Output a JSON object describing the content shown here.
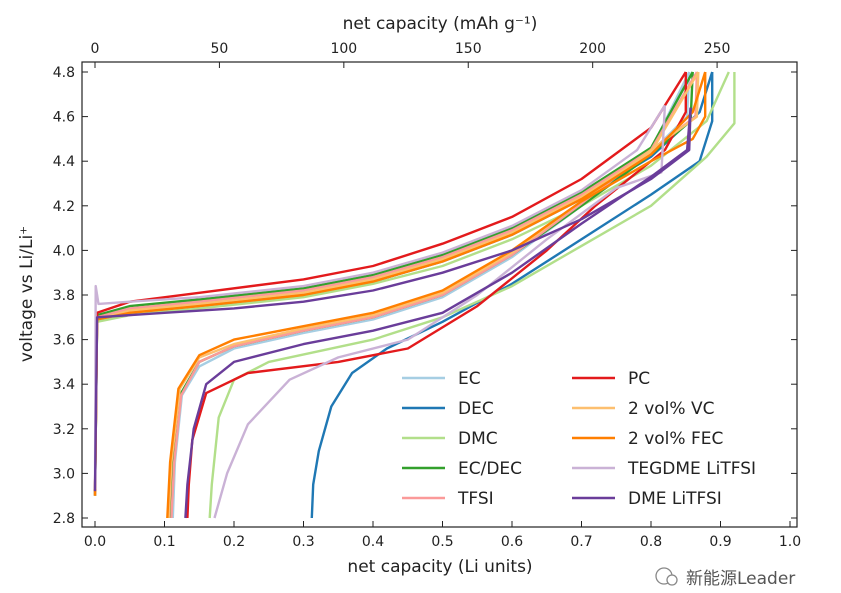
{
  "chart_data": {
    "type": "line",
    "xlabel": "net capacity (Li units)",
    "ylabel": "voltage vs Li/Li⁺",
    "x2label": "net capacity (mAh g⁻¹)",
    "xlim": [
      -0.02,
      1.02
    ],
    "ylim": [
      2.76,
      4.84
    ],
    "x2_per_x": 279.3,
    "xticks": [
      "0.0",
      "0.1",
      "0.2",
      "0.3",
      "0.4",
      "0.5",
      "0.6",
      "0.7",
      "0.8",
      "0.9",
      "1.0"
    ],
    "x2ticks": [
      "0",
      "50",
      "100",
      "150",
      "200",
      "250"
    ],
    "yticks": [
      "2.8",
      "3.0",
      "3.2",
      "3.4",
      "3.6",
      "3.8",
      "4.0",
      "4.2",
      "4.4",
      "4.6",
      "4.8"
    ],
    "grid": false,
    "legend_placement": "bottom-right",
    "series": [
      {
        "name": "EC",
        "color": "#a6cee3",
        "charge": [
          [
            0,
            2.9
          ],
          [
            0.003,
            3.7
          ],
          [
            0.05,
            3.74
          ],
          [
            0.15,
            3.77
          ],
          [
            0.3,
            3.82
          ],
          [
            0.4,
            3.88
          ],
          [
            0.5,
            3.97
          ],
          [
            0.6,
            4.09
          ],
          [
            0.7,
            4.25
          ],
          [
            0.8,
            4.45
          ],
          [
            0.855,
            4.8
          ]
        ],
        "discharge": [
          [
            0.855,
            4.8
          ],
          [
            0.852,
            4.6
          ],
          [
            0.8,
            4.44
          ],
          [
            0.7,
            4.2
          ],
          [
            0.6,
            3.97
          ],
          [
            0.5,
            3.79
          ],
          [
            0.4,
            3.69
          ],
          [
            0.3,
            3.63
          ],
          [
            0.2,
            3.56
          ],
          [
            0.15,
            3.48
          ],
          [
            0.125,
            3.35
          ],
          [
            0.115,
            3.05
          ],
          [
            0.112,
            2.8
          ]
        ]
      },
      {
        "name": "DEC",
        "color": "#1f78b4",
        "charge": [
          [
            0,
            2.9
          ],
          [
            0.003,
            3.69
          ],
          [
            0.05,
            3.72
          ],
          [
            0.15,
            3.75
          ],
          [
            0.3,
            3.8
          ],
          [
            0.4,
            3.86
          ],
          [
            0.5,
            3.95
          ],
          [
            0.6,
            4.07
          ],
          [
            0.7,
            4.23
          ],
          [
            0.8,
            4.42
          ],
          [
            0.87,
            4.62
          ],
          [
            0.888,
            4.8
          ]
        ],
        "discharge": [
          [
            0.888,
            4.8
          ],
          [
            0.888,
            4.58
          ],
          [
            0.87,
            4.4
          ],
          [
            0.8,
            4.25
          ],
          [
            0.7,
            4.05
          ],
          [
            0.6,
            3.85
          ],
          [
            0.5,
            3.68
          ],
          [
            0.42,
            3.56
          ],
          [
            0.37,
            3.45
          ],
          [
            0.34,
            3.3
          ],
          [
            0.322,
            3.1
          ],
          [
            0.314,
            2.95
          ],
          [
            0.312,
            2.8
          ]
        ]
      },
      {
        "name": "DMC",
        "color": "#b2df8a",
        "charge": [
          [
            0,
            2.9
          ],
          [
            0.003,
            3.68
          ],
          [
            0.05,
            3.71
          ],
          [
            0.15,
            3.74
          ],
          [
            0.3,
            3.79
          ],
          [
            0.4,
            3.85
          ],
          [
            0.5,
            3.93
          ],
          [
            0.6,
            4.05
          ],
          [
            0.7,
            4.2
          ],
          [
            0.8,
            4.38
          ],
          [
            0.88,
            4.58
          ],
          [
            0.912,
            4.8
          ]
        ],
        "discharge": [
          [
            0.92,
            4.8
          ],
          [
            0.92,
            4.57
          ],
          [
            0.88,
            4.42
          ],
          [
            0.8,
            4.2
          ],
          [
            0.7,
            4.02
          ],
          [
            0.6,
            3.84
          ],
          [
            0.5,
            3.7
          ],
          [
            0.4,
            3.6
          ],
          [
            0.25,
            3.5
          ],
          [
            0.2,
            3.42
          ],
          [
            0.178,
            3.25
          ],
          [
            0.168,
            2.95
          ],
          [
            0.165,
            2.8
          ]
        ]
      },
      {
        "name": "EC/DEC",
        "color": "#33a02c",
        "charge": [
          [
            0,
            2.9
          ],
          [
            0.003,
            3.71
          ],
          [
            0.05,
            3.75
          ],
          [
            0.15,
            3.78
          ],
          [
            0.3,
            3.83
          ],
          [
            0.4,
            3.89
          ],
          [
            0.5,
            3.98
          ],
          [
            0.6,
            4.1
          ],
          [
            0.7,
            4.26
          ],
          [
            0.8,
            4.46
          ],
          [
            0.86,
            4.8
          ]
        ],
        "discharge": [
          [
            0.86,
            4.8
          ],
          [
            0.857,
            4.58
          ],
          [
            0.8,
            4.43
          ],
          [
            0.7,
            4.2
          ],
          [
            0.6,
            3.98
          ],
          [
            0.5,
            3.8
          ],
          [
            0.4,
            3.7
          ],
          [
            0.3,
            3.64
          ],
          [
            0.2,
            3.57
          ],
          [
            0.15,
            3.5
          ],
          [
            0.122,
            3.35
          ],
          [
            0.112,
            3.05
          ],
          [
            0.108,
            2.8
          ]
        ]
      },
      {
        "name": "TFSI",
        "color": "#fb9a99",
        "charge": [
          [
            0,
            2.9
          ],
          [
            0.003,
            3.7
          ],
          [
            0.05,
            3.74
          ],
          [
            0.15,
            3.77
          ],
          [
            0.3,
            3.82
          ],
          [
            0.4,
            3.88
          ],
          [
            0.5,
            3.97
          ],
          [
            0.6,
            4.09
          ],
          [
            0.7,
            4.25
          ],
          [
            0.8,
            4.45
          ],
          [
            0.866,
            4.8
          ]
        ],
        "discharge": [
          [
            0.866,
            4.8
          ],
          [
            0.864,
            4.6
          ],
          [
            0.8,
            4.45
          ],
          [
            0.7,
            4.21
          ],
          [
            0.6,
            3.98
          ],
          [
            0.5,
            3.8
          ],
          [
            0.4,
            3.7
          ],
          [
            0.3,
            3.64
          ],
          [
            0.2,
            3.57
          ],
          [
            0.15,
            3.5
          ],
          [
            0.124,
            3.35
          ],
          [
            0.114,
            3.05
          ],
          [
            0.11,
            2.8
          ]
        ]
      },
      {
        "name": "PC",
        "color": "#e31a1c",
        "charge": [
          [
            0,
            2.92
          ],
          [
            0.003,
            3.72
          ],
          [
            0.05,
            3.77
          ],
          [
            0.15,
            3.81
          ],
          [
            0.3,
            3.87
          ],
          [
            0.4,
            3.93
          ],
          [
            0.5,
            4.03
          ],
          [
            0.6,
            4.15
          ],
          [
            0.7,
            4.32
          ],
          [
            0.8,
            4.55
          ],
          [
            0.85,
            4.8
          ]
        ],
        "discharge": [
          [
            0.85,
            4.8
          ],
          [
            0.85,
            4.62
          ],
          [
            0.82,
            4.45
          ],
          [
            0.72,
            4.2
          ],
          [
            0.65,
            4.0
          ],
          [
            0.55,
            3.75
          ],
          [
            0.45,
            3.56
          ],
          [
            0.35,
            3.5
          ],
          [
            0.22,
            3.45
          ],
          [
            0.16,
            3.36
          ],
          [
            0.14,
            3.15
          ],
          [
            0.135,
            2.95
          ],
          [
            0.133,
            2.8
          ]
        ]
      },
      {
        "name": "2 vol% VC",
        "color": "#fdbf6f",
        "charge": [
          [
            0,
            2.9
          ],
          [
            0.003,
            3.69
          ],
          [
            0.05,
            3.73
          ],
          [
            0.15,
            3.76
          ],
          [
            0.3,
            3.81
          ],
          [
            0.4,
            3.87
          ],
          [
            0.5,
            3.96
          ],
          [
            0.6,
            4.08
          ],
          [
            0.7,
            4.24
          ],
          [
            0.8,
            4.44
          ],
          [
            0.868,
            4.8
          ]
        ],
        "discharge": [
          [
            0.868,
            4.8
          ],
          [
            0.866,
            4.6
          ],
          [
            0.8,
            4.45
          ],
          [
            0.7,
            4.22
          ],
          [
            0.6,
            3.99
          ],
          [
            0.5,
            3.81
          ],
          [
            0.4,
            3.71
          ],
          [
            0.3,
            3.65
          ],
          [
            0.2,
            3.58
          ],
          [
            0.15,
            3.52
          ],
          [
            0.122,
            3.38
          ],
          [
            0.11,
            3.05
          ],
          [
            0.106,
            2.8
          ]
        ]
      },
      {
        "name": "2 vol% FEC",
        "color": "#ff7f00",
        "charge": [
          [
            0,
            2.9
          ],
          [
            0.003,
            3.69
          ],
          [
            0.05,
            3.72
          ],
          [
            0.15,
            3.75
          ],
          [
            0.3,
            3.8
          ],
          [
            0.4,
            3.86
          ],
          [
            0.5,
            3.95
          ],
          [
            0.6,
            4.07
          ],
          [
            0.7,
            4.23
          ],
          [
            0.8,
            4.43
          ],
          [
            0.86,
            4.62
          ],
          [
            0.878,
            4.8
          ]
        ],
        "discharge": [
          [
            0.878,
            4.8
          ],
          [
            0.878,
            4.6
          ],
          [
            0.86,
            4.5
          ],
          [
            0.8,
            4.4
          ],
          [
            0.7,
            4.22
          ],
          [
            0.6,
            4.0
          ],
          [
            0.5,
            3.82
          ],
          [
            0.4,
            3.72
          ],
          [
            0.3,
            3.66
          ],
          [
            0.2,
            3.6
          ],
          [
            0.15,
            3.53
          ],
          [
            0.12,
            3.38
          ],
          [
            0.108,
            3.05
          ],
          [
            0.104,
            2.8
          ]
        ]
      },
      {
        "name": "TEGDME LiTFSI",
        "color": "#cab2d6",
        "charge": [
          [
            0,
            2.93
          ],
          [
            0.001,
            3.84
          ],
          [
            0.005,
            3.76
          ],
          [
            0.05,
            3.77
          ],
          [
            0.15,
            3.79
          ],
          [
            0.3,
            3.84
          ],
          [
            0.4,
            3.9
          ],
          [
            0.5,
            3.99
          ],
          [
            0.6,
            4.11
          ],
          [
            0.7,
            4.27
          ],
          [
            0.78,
            4.45
          ],
          [
            0.82,
            4.65
          ]
        ],
        "discharge": [
          [
            0.82,
            4.65
          ],
          [
            0.815,
            4.35
          ],
          [
            0.75,
            4.28
          ],
          [
            0.65,
            4.05
          ],
          [
            0.55,
            3.8
          ],
          [
            0.45,
            3.6
          ],
          [
            0.35,
            3.52
          ],
          [
            0.28,
            3.42
          ],
          [
            0.22,
            3.22
          ],
          [
            0.19,
            3.0
          ],
          [
            0.172,
            2.8
          ]
        ]
      },
      {
        "name": "DME LiTFSI",
        "color": "#6a3d9a",
        "charge": [
          [
            0,
            2.92
          ],
          [
            0.003,
            3.7
          ],
          [
            0.1,
            3.72
          ],
          [
            0.2,
            3.74
          ],
          [
            0.3,
            3.77
          ],
          [
            0.4,
            3.82
          ],
          [
            0.5,
            3.9
          ],
          [
            0.6,
            4.0
          ],
          [
            0.7,
            4.14
          ],
          [
            0.8,
            4.32
          ],
          [
            0.855,
            4.45
          ],
          [
            0.857,
            4.64
          ]
        ],
        "discharge": [
          [
            0.857,
            4.64
          ],
          [
            0.852,
            4.45
          ],
          [
            0.8,
            4.33
          ],
          [
            0.7,
            4.12
          ],
          [
            0.6,
            3.9
          ],
          [
            0.5,
            3.72
          ],
          [
            0.4,
            3.64
          ],
          [
            0.3,
            3.58
          ],
          [
            0.2,
            3.5
          ],
          [
            0.16,
            3.4
          ],
          [
            0.142,
            3.2
          ],
          [
            0.133,
            2.95
          ],
          [
            0.13,
            2.8
          ]
        ]
      }
    ]
  },
  "watermark": {
    "text": "新能源Leader"
  }
}
